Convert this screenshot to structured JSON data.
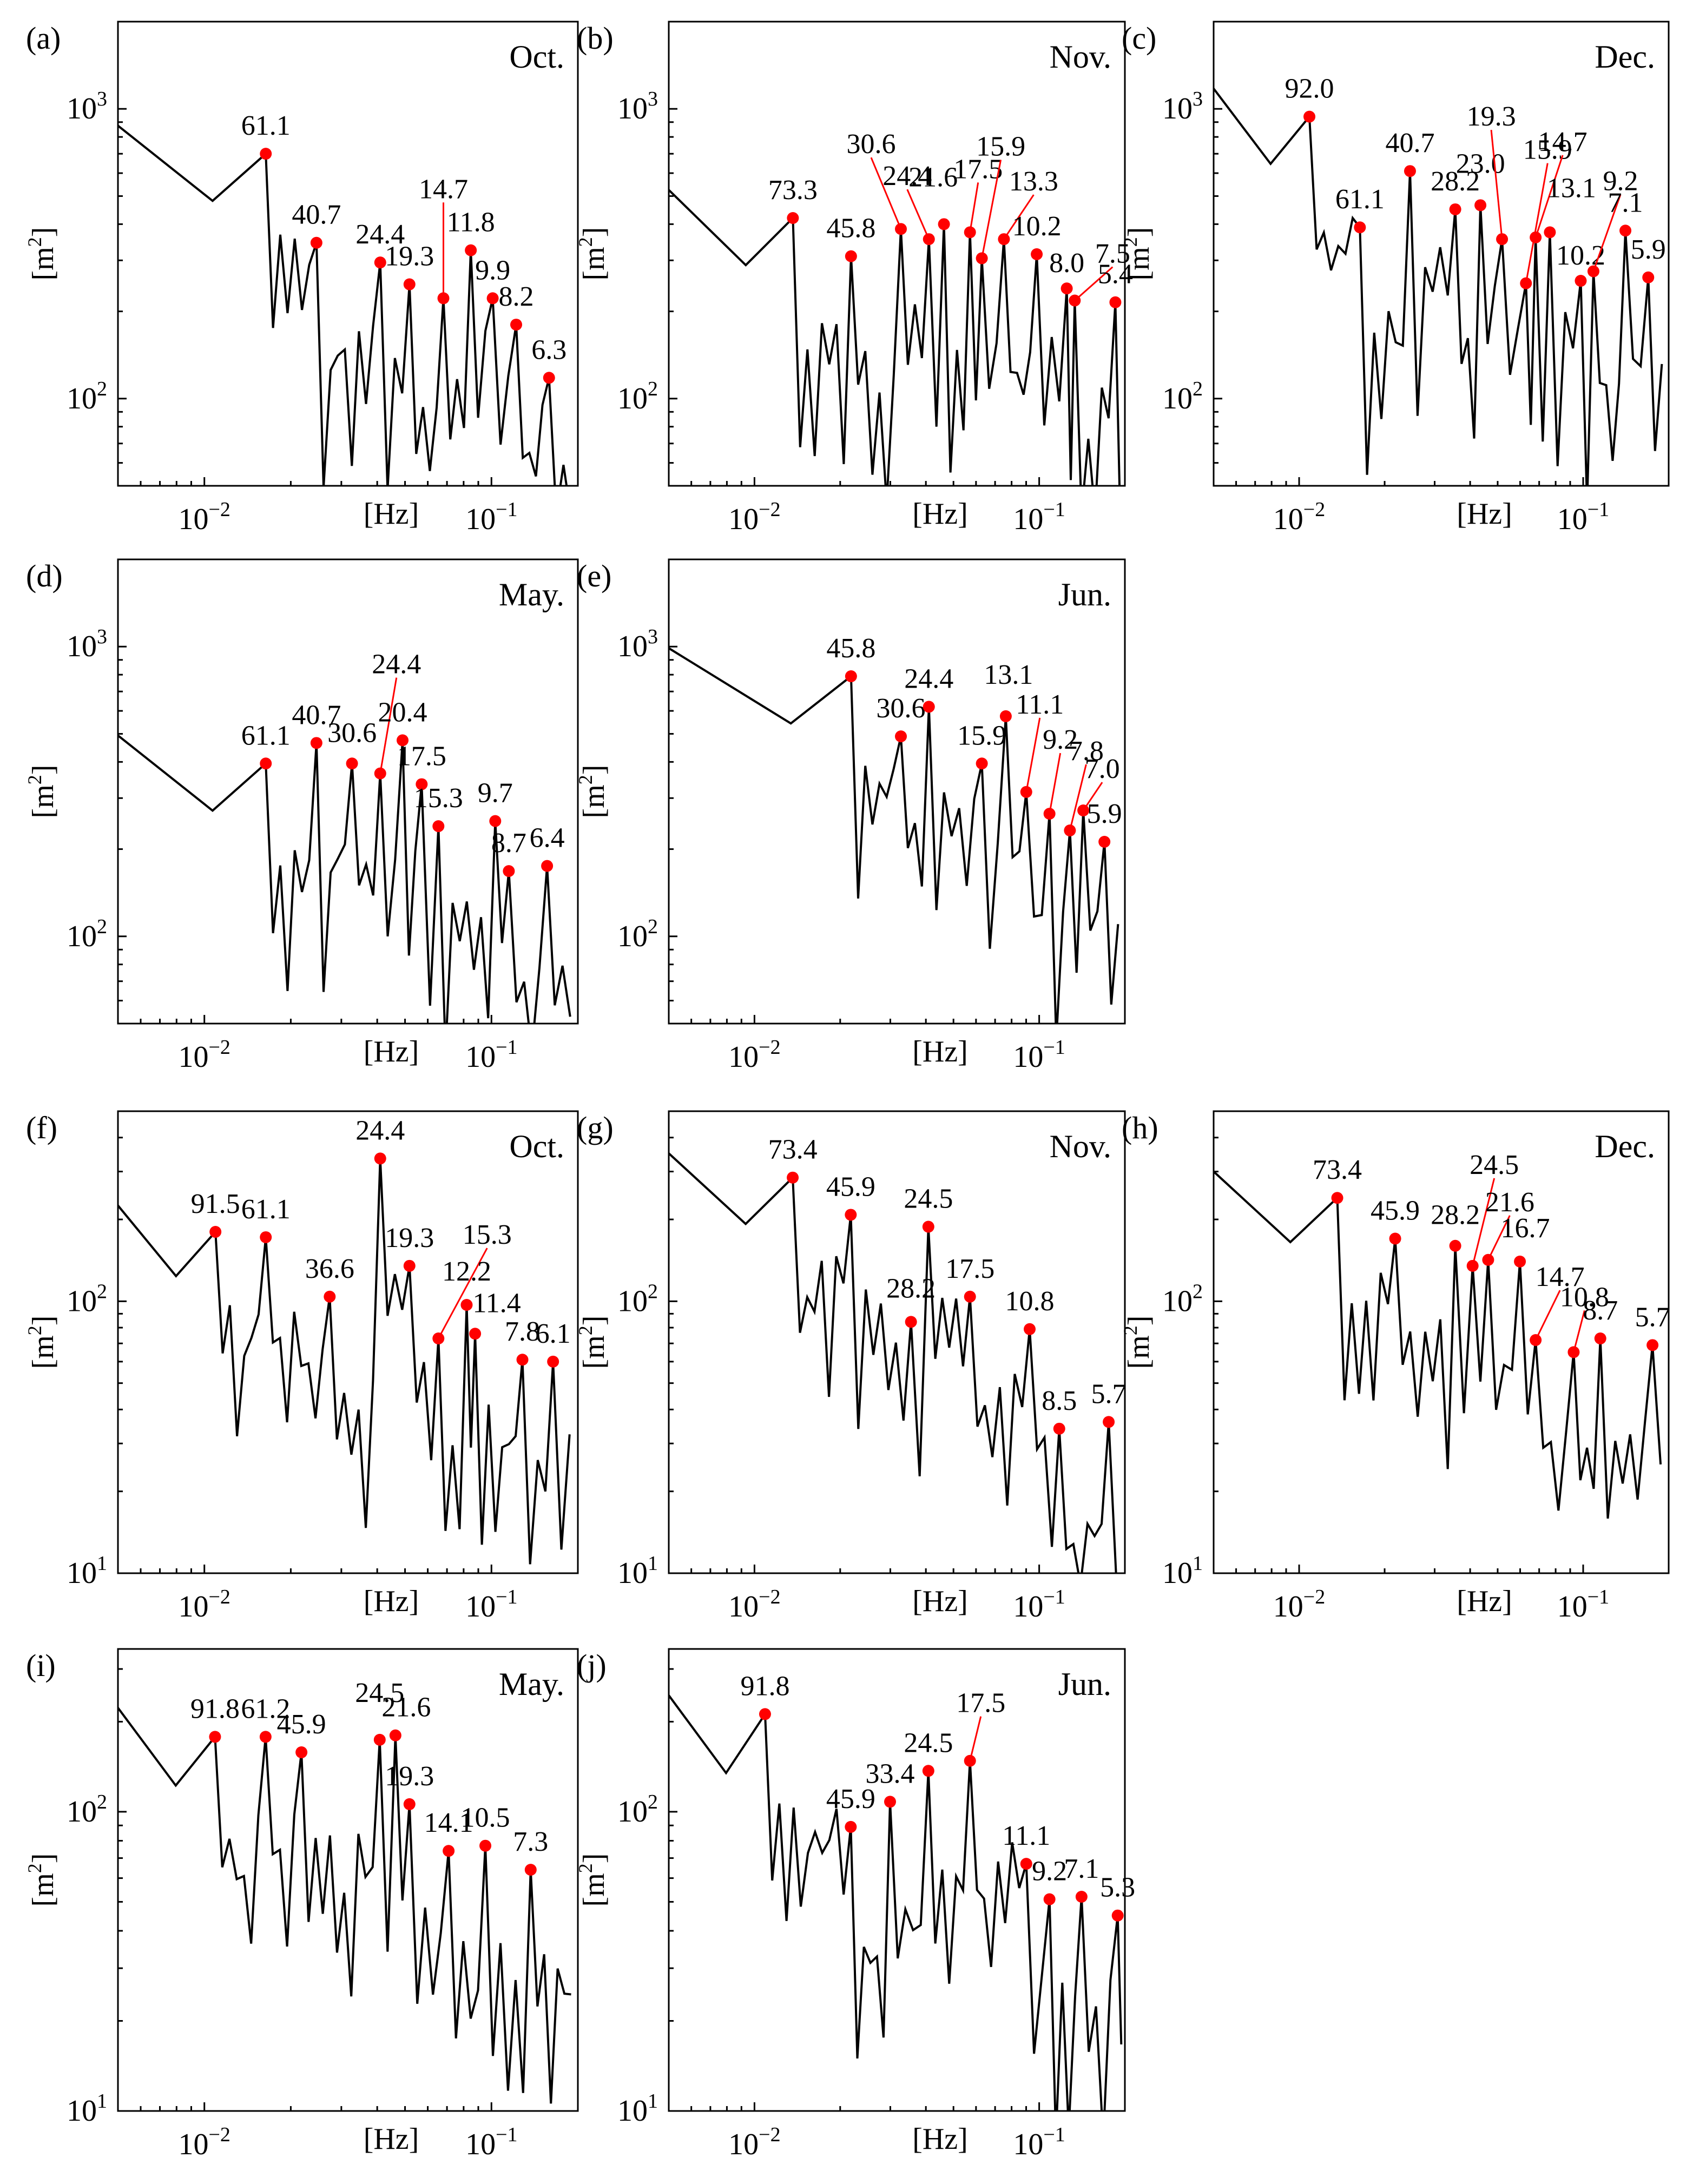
{
  "figure": {
    "colors": {
      "line": "#000000",
      "peak": "#ff0000",
      "leader": "#ff0000",
      "frame": "#000000"
    },
    "x_unit_label": "[Hz]",
    "y_unit_label_base": "m",
    "y_unit_label_power": "2"
  },
  "chart_data": [
    {
      "id": "a",
      "panel_label": "(a)",
      "month": "Oct.",
      "type": "line",
      "xscale": "log",
      "yscale": "log",
      "xlim": [
        0.005,
        0.2
      ],
      "ylim": [
        50,
        2000
      ],
      "x_ticks": [
        {
          "value": 0.01,
          "base": "10",
          "exp": "−2"
        },
        {
          "value": 0.1,
          "base": "10",
          "exp": "−1"
        }
      ],
      "y_ticks": [
        {
          "value": 100,
          "base": "10",
          "exp": "2"
        },
        {
          "value": 1000,
          "base": "10",
          "exp": "3"
        }
      ],
      "peaks": [
        {
          "period": "61.1",
          "value": 700
        },
        {
          "period": "40.7",
          "value": 345
        },
        {
          "period": "24.4",
          "value": 295
        },
        {
          "period": "19.3",
          "value": 248
        },
        {
          "period": "14.7",
          "value": 222
        },
        {
          "period": "11.8",
          "value": 325
        },
        {
          "period": "9.9",
          "value": 222
        },
        {
          "period": "8.2",
          "value": 180
        },
        {
          "period": "6.3",
          "value": 118
        }
      ]
    },
    {
      "id": "b",
      "panel_label": "(b)",
      "month": "Nov.",
      "type": "line",
      "xscale": "log",
      "yscale": "log",
      "xlim": [
        0.005,
        0.2
      ],
      "ylim": [
        50,
        2000
      ],
      "x_ticks": [
        {
          "value": 0.01,
          "base": "10",
          "exp": "−2"
        },
        {
          "value": 0.1,
          "base": "10",
          "exp": "−1"
        }
      ],
      "y_ticks": [
        {
          "value": 100,
          "base": "10",
          "exp": "2"
        },
        {
          "value": 1000,
          "base": "10",
          "exp": "3"
        }
      ],
      "peaks": [
        {
          "period": "73.3",
          "value": 420
        },
        {
          "period": "45.8",
          "value": 310
        },
        {
          "period": "30.6",
          "value": 385
        },
        {
          "period": "24.4",
          "value": 355
        },
        {
          "period": "21.6",
          "value": 400
        },
        {
          "period": "17.5",
          "value": 375
        },
        {
          "period": "15.9",
          "value": 305
        },
        {
          "period": "13.3",
          "value": 355
        },
        {
          "period": "10.2",
          "value": 315
        },
        {
          "period": "8.0",
          "value": 240
        },
        {
          "period": "7.5",
          "value": 218
        },
        {
          "period": "5.4",
          "value": 215
        }
      ]
    },
    {
      "id": "c",
      "panel_label": "(c)",
      "month": "Dec.",
      "type": "line",
      "xscale": "log",
      "yscale": "log",
      "xlim": [
        0.005,
        0.2
      ],
      "ylim": [
        50,
        2000
      ],
      "x_ticks": [
        {
          "value": 0.01,
          "base": "10",
          "exp": "−2"
        },
        {
          "value": 0.1,
          "base": "10",
          "exp": "−1"
        }
      ],
      "y_ticks": [
        {
          "value": 100,
          "base": "10",
          "exp": "2"
        },
        {
          "value": 1000,
          "base": "10",
          "exp": "3"
        }
      ],
      "peaks": [
        {
          "period": "92.0",
          "value": 940
        },
        {
          "period": "61.1",
          "value": 390
        },
        {
          "period": "40.7",
          "value": 610
        },
        {
          "period": "28.2",
          "value": 450
        },
        {
          "period": "23.0",
          "value": 465
        },
        {
          "period": "19.3",
          "value": 355
        },
        {
          "period": "15.9",
          "value": 250
        },
        {
          "period": "14.7",
          "value": 360
        },
        {
          "period": "13.1",
          "value": 375
        },
        {
          "period": "10.2",
          "value": 255
        },
        {
          "period": "9.2",
          "value": 275
        },
        {
          "period": "7.1",
          "value": 380
        },
        {
          "period": "5.9",
          "value": 262
        }
      ]
    },
    {
      "id": "d",
      "panel_label": "(d)",
      "month": "May.",
      "type": "line",
      "xscale": "log",
      "yscale": "log",
      "xlim": [
        0.005,
        0.2
      ],
      "ylim": [
        50,
        2000
      ],
      "x_ticks": [
        {
          "value": 0.01,
          "base": "10",
          "exp": "−2"
        },
        {
          "value": 0.1,
          "base": "10",
          "exp": "−1"
        }
      ],
      "y_ticks": [
        {
          "value": 100,
          "base": "10",
          "exp": "2"
        },
        {
          "value": 1000,
          "base": "10",
          "exp": "3"
        }
      ],
      "peaks": [
        {
          "period": "61.1",
          "value": 395
        },
        {
          "period": "40.7",
          "value": 465
        },
        {
          "period": "30.6",
          "value": 395
        },
        {
          "period": "24.4",
          "value": 365
        },
        {
          "period": "20.4",
          "value": 475
        },
        {
          "period": "17.5",
          "value": 335
        },
        {
          "period": "15.3",
          "value": 240
        },
        {
          "period": "9.7",
          "value": 250
        },
        {
          "period": "8.7",
          "value": 168
        },
        {
          "period": "6.4",
          "value": 175
        }
      ]
    },
    {
      "id": "e",
      "panel_label": "(e)",
      "month": "Jun.",
      "type": "line",
      "xscale": "log",
      "yscale": "log",
      "xlim": [
        0.005,
        0.2
      ],
      "ylim": [
        50,
        2000
      ],
      "x_ticks": [
        {
          "value": 0.01,
          "base": "10",
          "exp": "−2"
        },
        {
          "value": 0.1,
          "base": "10",
          "exp": "−1"
        }
      ],
      "y_ticks": [
        {
          "value": 100,
          "base": "10",
          "exp": "2"
        },
        {
          "value": 1000,
          "base": "10",
          "exp": "3"
        }
      ],
      "peaks": [
        {
          "period": "45.8",
          "value": 790
        },
        {
          "period": "30.6",
          "value": 490
        },
        {
          "period": "24.4",
          "value": 620
        },
        {
          "period": "15.9",
          "value": 395
        },
        {
          "period": "13.1",
          "value": 575
        },
        {
          "period": "11.1",
          "value": 315
        },
        {
          "period": "9.2",
          "value": 265
        },
        {
          "period": "7.8",
          "value": 232
        },
        {
          "period": "7.0",
          "value": 272
        },
        {
          "period": "5.9",
          "value": 212
        }
      ]
    },
    {
      "id": "f",
      "panel_label": "(f)",
      "month": "Oct.",
      "type": "line",
      "xscale": "log",
      "yscale": "log",
      "xlim": [
        0.005,
        0.2
      ],
      "ylim": [
        10,
        500
      ],
      "x_ticks": [
        {
          "value": 0.01,
          "base": "10",
          "exp": "−2"
        },
        {
          "value": 0.1,
          "base": "10",
          "exp": "−1"
        }
      ],
      "y_ticks": [
        {
          "value": 10,
          "base": "10",
          "exp": "1"
        },
        {
          "value": 100,
          "base": "10",
          "exp": "2"
        }
      ],
      "peaks": [
        {
          "period": "91.5",
          "value": 180
        },
        {
          "period": "61.1",
          "value": 172
        },
        {
          "period": "36.6",
          "value": 104
        },
        {
          "period": "24.4",
          "value": 335
        },
        {
          "period": "19.3",
          "value": 135
        },
        {
          "period": "15.3",
          "value": 73
        },
        {
          "period": "12.2",
          "value": 97
        },
        {
          "period": "11.4",
          "value": 76
        },
        {
          "period": "7.8",
          "value": 61
        },
        {
          "period": "6.1",
          "value": 60
        }
      ]
    },
    {
      "id": "g",
      "panel_label": "(g)",
      "month": "Nov.",
      "type": "line",
      "xscale": "log",
      "yscale": "log",
      "xlim": [
        0.005,
        0.2
      ],
      "ylim": [
        10,
        500
      ],
      "x_ticks": [
        {
          "value": 0.01,
          "base": "10",
          "exp": "−2"
        },
        {
          "value": 0.1,
          "base": "10",
          "exp": "−1"
        }
      ],
      "y_ticks": [
        {
          "value": 10,
          "base": "10",
          "exp": "1"
        },
        {
          "value": 100,
          "base": "10",
          "exp": "2"
        }
      ],
      "peaks": [
        {
          "period": "73.4",
          "value": 285
        },
        {
          "period": "45.9",
          "value": 208
        },
        {
          "period": "24.5",
          "value": 188
        },
        {
          "period": "28.2",
          "value": 84
        },
        {
          "period": "17.5",
          "value": 104
        },
        {
          "period": "10.8",
          "value": 79
        },
        {
          "period": "8.5",
          "value": 34
        },
        {
          "period": "5.7",
          "value": 36
        }
      ]
    },
    {
      "id": "h",
      "panel_label": "(h)",
      "month": "Dec.",
      "type": "line",
      "xscale": "log",
      "yscale": "log",
      "xlim": [
        0.005,
        0.2
      ],
      "ylim": [
        10,
        500
      ],
      "x_ticks": [
        {
          "value": 0.01,
          "base": "10",
          "exp": "−2"
        },
        {
          "value": 0.1,
          "base": "10",
          "exp": "−1"
        }
      ],
      "y_ticks": [
        {
          "value": 10,
          "base": "10",
          "exp": "1"
        },
        {
          "value": 100,
          "base": "10",
          "exp": "2"
        }
      ],
      "peaks": [
        {
          "period": "73.4",
          "value": 240
        },
        {
          "period": "45.9",
          "value": 170
        },
        {
          "period": "28.2",
          "value": 160
        },
        {
          "period": "24.5",
          "value": 135
        },
        {
          "period": "21.6",
          "value": 142
        },
        {
          "period": "16.7",
          "value": 140
        },
        {
          "period": "14.7",
          "value": 72
        },
        {
          "period": "10.8",
          "value": 65
        },
        {
          "period": "8.7",
          "value": 73
        },
        {
          "period": "5.7",
          "value": 69
        }
      ]
    },
    {
      "id": "i",
      "panel_label": "(i)",
      "month": "May.",
      "type": "line",
      "xscale": "log",
      "yscale": "log",
      "xlim": [
        0.005,
        0.2
      ],
      "ylim": [
        10,
        350
      ],
      "x_ticks": [
        {
          "value": 0.01,
          "base": "10",
          "exp": "−2"
        },
        {
          "value": 0.1,
          "base": "10",
          "exp": "−1"
        }
      ],
      "y_ticks": [
        {
          "value": 10,
          "base": "10",
          "exp": "1"
        },
        {
          "value": 100,
          "base": "10",
          "exp": "2"
        }
      ],
      "peaks": [
        {
          "period": "91.8",
          "value": 178
        },
        {
          "period": "61.2",
          "value": 178
        },
        {
          "period": "45.9",
          "value": 158
        },
        {
          "period": "24.5",
          "value": 174
        },
        {
          "period": "21.6",
          "value": 180
        },
        {
          "period": "19.3",
          "value": 106
        },
        {
          "period": "14.1",
          "value": 74
        },
        {
          "period": "10.5",
          "value": 77
        },
        {
          "period": "7.3",
          "value": 64
        }
      ]
    },
    {
      "id": "j",
      "panel_label": "(j)",
      "month": "Jun.",
      "type": "line",
      "xscale": "log",
      "yscale": "log",
      "xlim": [
        0.005,
        0.2
      ],
      "ylim": [
        10,
        350
      ],
      "x_ticks": [
        {
          "value": 0.01,
          "base": "10",
          "exp": "−2"
        },
        {
          "value": 0.1,
          "base": "10",
          "exp": "−1"
        }
      ],
      "y_ticks": [
        {
          "value": 10,
          "base": "10",
          "exp": "1"
        },
        {
          "value": 100,
          "base": "10",
          "exp": "2"
        }
      ],
      "peaks": [
        {
          "period": "91.8",
          "value": 212
        },
        {
          "period": "45.9",
          "value": 89
        },
        {
          "period": "33.4",
          "value": 108
        },
        {
          "period": "24.5",
          "value": 137
        },
        {
          "period": "17.5",
          "value": 148
        },
        {
          "period": "11.1",
          "value": 67
        },
        {
          "period": "9.2",
          "value": 51
        },
        {
          "period": "7.1",
          "value": 52
        },
        {
          "period": "5.3",
          "value": 45
        }
      ]
    }
  ]
}
